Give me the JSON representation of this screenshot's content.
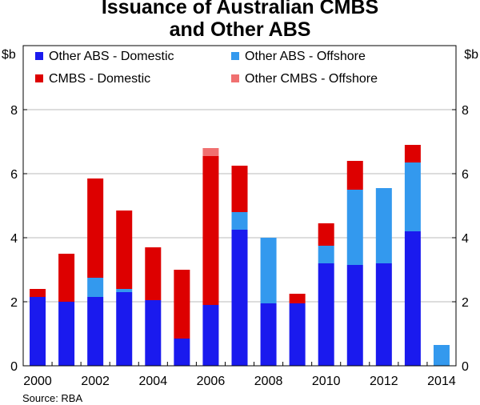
{
  "chart_data": {
    "type": "bar",
    "stacked": true,
    "title_line1": "Issuance of Australian CMBS",
    "title_line2": "and Other ABS",
    "ylabel_left": "$b",
    "ylabel_right": "$b",
    "ylim": [
      0,
      10
    ],
    "yticks": [
      0,
      2,
      4,
      6,
      8
    ],
    "categories": [
      "2000",
      "2001",
      "2002",
      "2003",
      "2004",
      "2005",
      "2006",
      "2007",
      "2008",
      "2009",
      "2010",
      "2011",
      "2012",
      "2013",
      "2014"
    ],
    "xtick_labels": [
      "2000",
      "2002",
      "2004",
      "2006",
      "2008",
      "2010",
      "2012",
      "2014"
    ],
    "series": [
      {
        "name": "Other ABS - Domestic",
        "color": "#1a1aee",
        "values": [
          2.15,
          2.0,
          2.15,
          2.3,
          2.05,
          0.85,
          1.9,
          4.25,
          1.95,
          1.95,
          3.2,
          3.15,
          3.2,
          4.2,
          0.0
        ]
      },
      {
        "name": "Other ABS - Offshore",
        "color": "#3399ee",
        "values": [
          0.0,
          0.0,
          0.6,
          0.1,
          0.0,
          0.0,
          0.0,
          0.55,
          2.05,
          0.0,
          0.55,
          2.35,
          2.35,
          2.15,
          0.65
        ]
      },
      {
        "name": "CMBS - Domestic",
        "color": "#dd0000",
        "values": [
          0.25,
          1.5,
          3.1,
          2.45,
          1.65,
          2.15,
          4.65,
          1.45,
          0.0,
          0.3,
          0.7,
          0.9,
          0.0,
          0.55,
          0.0
        ]
      },
      {
        "name": "Other CMBS - Offshore",
        "color": "#f07070",
        "values": [
          0.0,
          0.0,
          0.0,
          0.0,
          0.0,
          0.0,
          0.25,
          0.0,
          0.0,
          0.0,
          0.0,
          0.0,
          0.0,
          0.0,
          0.0
        ]
      }
    ],
    "legend_order": [
      0,
      1,
      2,
      3
    ],
    "legend_placement": "top",
    "grid": "horizontal",
    "source": "Source: RBA"
  }
}
